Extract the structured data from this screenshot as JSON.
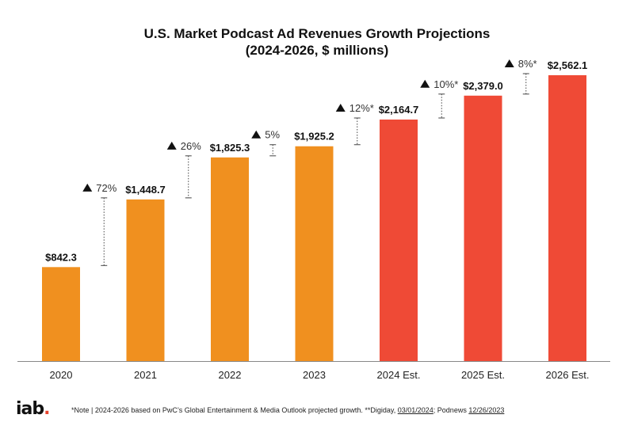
{
  "chart_data": {
    "type": "bar",
    "title": "U.S. Market Podcast Ad Revenues Growth Projections",
    "subtitle": "(2024-2026, $ millions)",
    "categories": [
      "2020",
      "2021",
      "2022",
      "2023",
      "2024 Est.",
      "2025 Est.",
      "2026 Est."
    ],
    "values": [
      842.3,
      1448.7,
      1825.3,
      1925.2,
      2164.7,
      2379.0,
      2562.1
    ],
    "value_labels": [
      "$842.3",
      "$1,448.7",
      "$1,825.3",
      "$1,925.2",
      "$2,164.7",
      "$2,379.0",
      "$2,562.1"
    ],
    "growth_labels": [
      "72%",
      "26%",
      "5%",
      "12%*",
      "10%*",
      "8%*"
    ],
    "colors": [
      "#f0901f",
      "#f0901f",
      "#f0901f",
      "#f0901f",
      "#ef4a36",
      "#ef4a36",
      "#ef4a36"
    ],
    "ylim": [
      0,
      2600
    ],
    "grid": false,
    "legend": "none"
  },
  "footer": {
    "logo": "iab",
    "logo_dot": ".",
    "note_main": "*Note | 2024-2026 based on PwC’s Global Entertainment & Media Outlook projected growth. **Digiday, ",
    "note_link1": "03/01/2024",
    "note_sep": "; Podnews ",
    "note_link2": "12/26/2023"
  },
  "colors": {
    "estimate": "#ef4a36",
    "actual": "#f0901f",
    "axis": "#888888"
  }
}
